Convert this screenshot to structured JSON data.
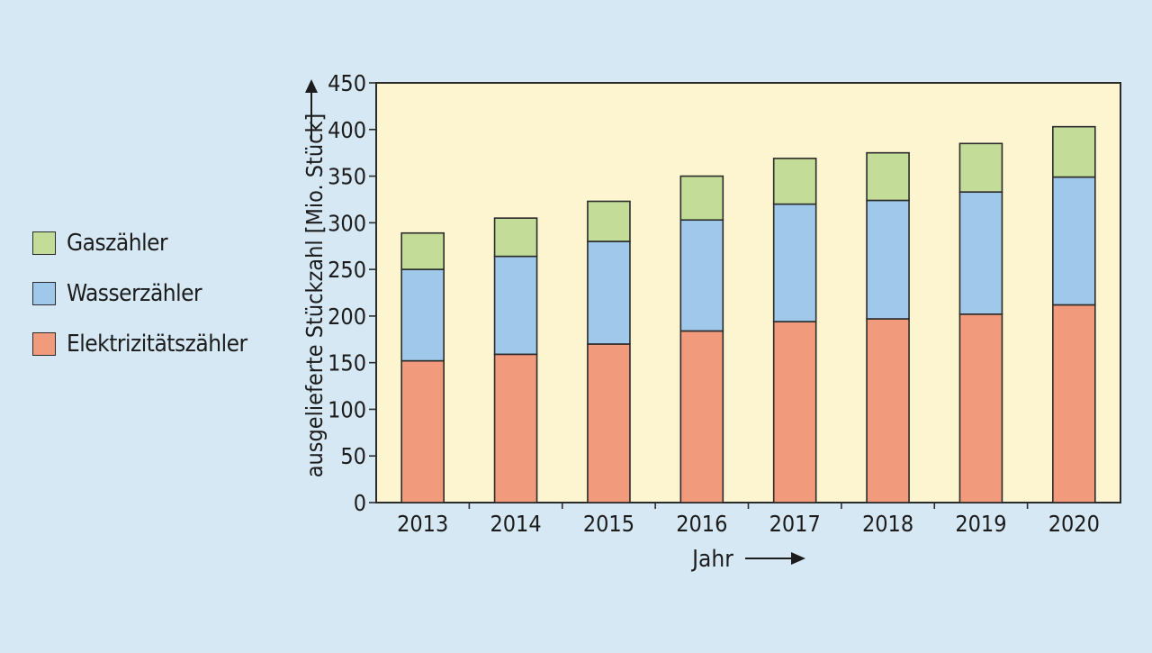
{
  "chart_data": {
    "type": "bar",
    "stacked": true,
    "categories": [
      "2013",
      "2014",
      "2015",
      "2016",
      "2017",
      "2018",
      "2019",
      "2020"
    ],
    "series": [
      {
        "name": "Elektrizitätszähler",
        "color": "#f29a7c",
        "values": [
          152,
          159,
          170,
          184,
          194,
          197,
          202,
          212
        ]
      },
      {
        "name": "Wasserzähler",
        "color": "#9fc8ea",
        "values": [
          98,
          105,
          110,
          119,
          126,
          127,
          131,
          137
        ]
      },
      {
        "name": "Gaszähler",
        "color": "#c3dc97",
        "values": [
          39,
          41,
          43,
          47,
          49,
          51,
          52,
          54
        ]
      }
    ],
    "xlabel": "Jahr",
    "ylabel": "ausgelieferte Stückzahl [Mio. Stück]",
    "ylim": [
      0,
      450
    ],
    "yticks": [
      0,
      50,
      100,
      150,
      200,
      250,
      300,
      350,
      400,
      450
    ],
    "plot_background": "#fcf5cf",
    "grid": false,
    "legend_position": "left",
    "legend_order": [
      "Gaszähler",
      "Wasserzähler",
      "Elektrizitätszähler"
    ]
  }
}
